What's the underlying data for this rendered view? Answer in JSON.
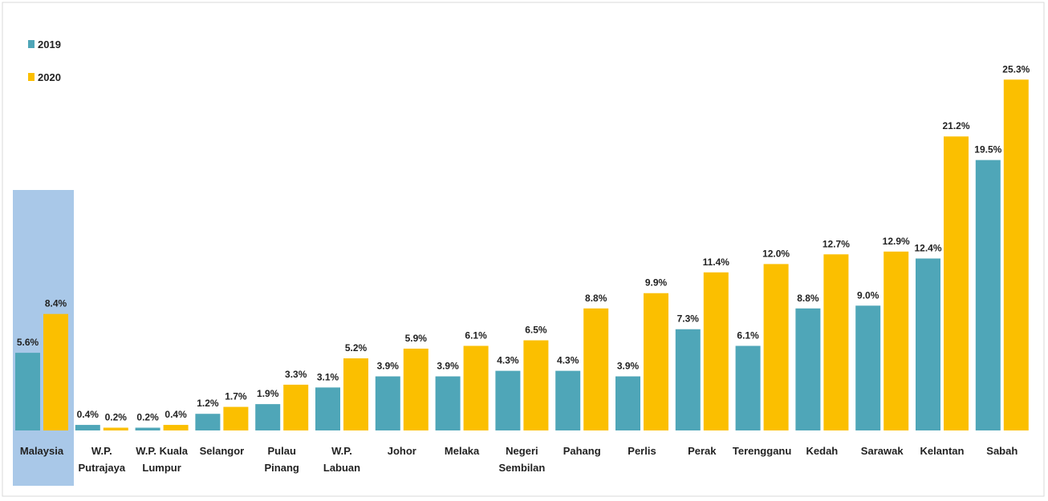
{
  "chart_data": {
    "type": "bar",
    "categories": [
      "Malaysia",
      "W.P.\nPutrajaya",
      "W.P. Kuala\nLumpur",
      "Selangor",
      "Pulau\nPinang",
      "W.P.\nLabuan",
      "Johor",
      "Melaka",
      "Negeri\nSembilan",
      "Pahang",
      "Perlis",
      "Perak",
      "Terengganu",
      "Kedah",
      "Sarawak",
      "Kelantan",
      "Sabah"
    ],
    "series": [
      {
        "name": "2019",
        "color": "#4fa6b8",
        "values": [
          5.6,
          0.4,
          0.2,
          1.2,
          1.9,
          3.1,
          3.9,
          3.9,
          4.3,
          4.3,
          3.9,
          7.3,
          6.1,
          8.8,
          9.0,
          12.4,
          19.5
        ],
        "value_labels": [
          "5.6%",
          "0.4%",
          "0.2%",
          "1.2%",
          "1.9%",
          "3.1%",
          "3.9%",
          "3.9%",
          "4.3%",
          "4.3%",
          "3.9%",
          "7.3%",
          "6.1%",
          "8.8%",
          "9.0%",
          "12.4%",
          "19.5%"
        ]
      },
      {
        "name": "2020",
        "color": "#fbbf00",
        "values": [
          8.4,
          0.2,
          0.4,
          1.7,
          3.3,
          5.2,
          5.9,
          6.1,
          6.5,
          8.8,
          9.9,
          11.4,
          12.0,
          12.7,
          12.9,
          21.2,
          25.3
        ],
        "value_labels": [
          "8.4%",
          "0.2%",
          "0.4%",
          "1.7%",
          "3.3%",
          "5.2%",
          "5.9%",
          "6.1%",
          "6.5%",
          "8.8%",
          "9.9%",
          "11.4%",
          "12.0%",
          "12.7%",
          "12.9%",
          "21.2%",
          "25.3%"
        ]
      }
    ],
    "legend": "top-left"
  }
}
